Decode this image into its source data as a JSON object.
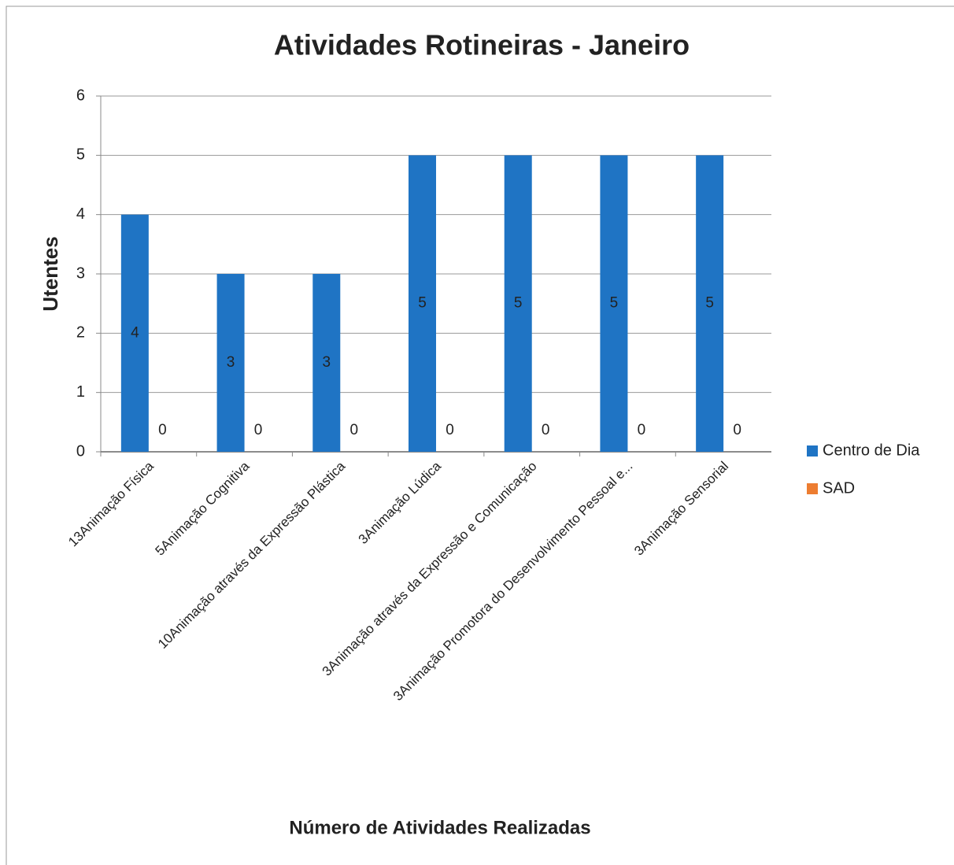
{
  "chart_data": {
    "type": "bar",
    "title": "Atividades Rotineiras - Janeiro",
    "x_label": "Número de Atividades Realizadas",
    "y_label": "Utentes",
    "categories": [
      "13Animação Física",
      "5Animação Cognitiva",
      "10Animação através da Expressão Plástica",
      "3Animação Lúdica",
      "3Animação através da Expressão e Comunicação",
      "3Animação Promotora do Desenvolvimento Pessoal e...",
      "3Animação Sensorial"
    ],
    "series": [
      {
        "name": "Centro de Dia",
        "color": "#1f74c4",
        "values": [
          4,
          3,
          3,
          5,
          5,
          5,
          5
        ]
      },
      {
        "name": "SAD",
        "color": "#ed7d31",
        "values": [
          0,
          0,
          0,
          0,
          0,
          0,
          0
        ]
      }
    ],
    "ylim": [
      0,
      6
    ],
    "yticks": [
      0,
      1,
      2,
      3,
      4,
      5,
      6
    ],
    "grid": true,
    "legend": "right"
  }
}
